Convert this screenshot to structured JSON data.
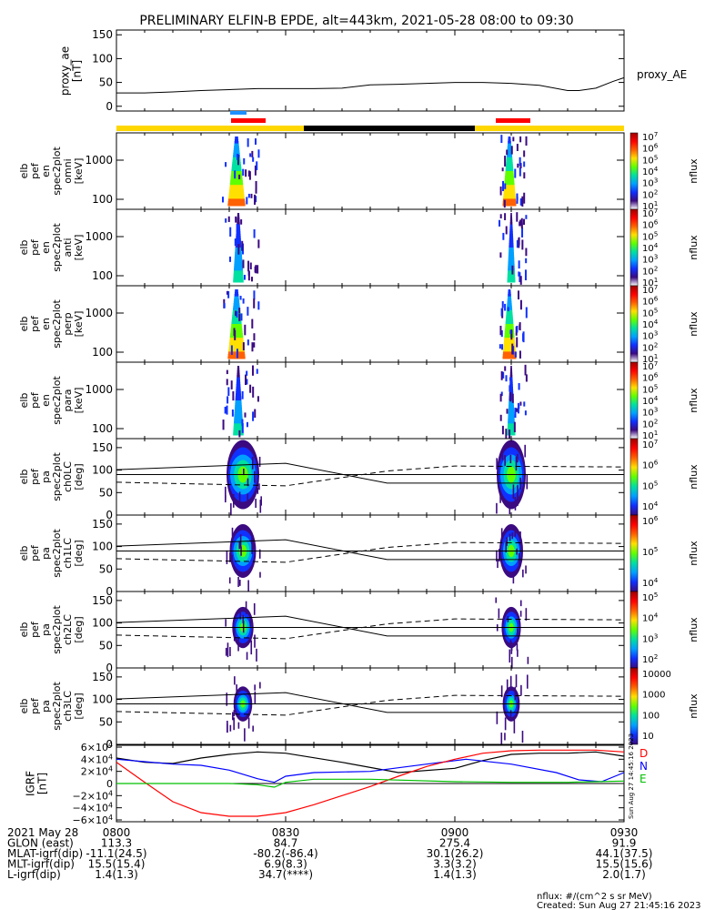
{
  "title": "PRELIMINARY ELFIN-B EPDE, alt=443km, 2021-05-28 08:00 to 09:30",
  "time_axis": {
    "ticks": [
      "0800",
      "0830",
      "0900",
      "0930"
    ],
    "tick_minutes": [
      0,
      30,
      60,
      90
    ],
    "range_minutes": [
      0,
      90
    ]
  },
  "proxy_ae": {
    "ylabel": [
      "proxy_ae",
      "[nT]"
    ],
    "legend": "proxy_AE",
    "yticks": [
      "150",
      "100",
      "50",
      "0"
    ],
    "ytick_values": [
      150,
      100,
      50,
      0
    ],
    "ylim": [
      -10,
      160
    ],
    "minutes": [
      0,
      5,
      10,
      15,
      20,
      25,
      30,
      35,
      40,
      45,
      50,
      55,
      60,
      65,
      70,
      75,
      80,
      82,
      85,
      88,
      90
    ],
    "values": [
      28,
      28,
      30,
      33,
      35,
      37,
      37,
      37,
      38,
      45,
      46,
      48,
      50,
      50,
      48,
      44,
      33,
      33,
      38,
      52,
      60
    ]
  },
  "spectrograms": [
    {
      "name": "omni",
      "ylabel": [
        "elb",
        "pef",
        "en",
        "spec2plot",
        "omni",
        "[keV]"
      ],
      "yticks": [
        "1000",
        "100"
      ],
      "zticks": [
        "10^7",
        "10^6",
        "10^5",
        "10^4",
        "10^3",
        "10^2",
        "10^1"
      ],
      "zlabel": "nflux",
      "intensity": 1.0
    },
    {
      "name": "anti",
      "ylabel": [
        "elb",
        "pef",
        "en",
        "spec2plot",
        "anti",
        "[keV]"
      ],
      "yticks": [
        "1000",
        "100"
      ],
      "zticks": [
        "10^7",
        "10^6",
        "10^5",
        "10^4",
        "10^3",
        "10^2",
        "10^1"
      ],
      "zlabel": "nflux",
      "intensity": 0.45
    },
    {
      "name": "perp",
      "ylabel": [
        "elb",
        "pef",
        "en",
        "spec2plot",
        "perp",
        "[keV]"
      ],
      "yticks": [
        "1000",
        "100"
      ],
      "zticks": [
        "10^7",
        "10^6",
        "10^5",
        "10^4",
        "10^3",
        "10^2",
        "10^1"
      ],
      "zlabel": "nflux",
      "intensity": 1.0
    },
    {
      "name": "para",
      "ylabel": [
        "elb",
        "pef",
        "en",
        "spec2plot",
        "para",
        "[keV]"
      ],
      "yticks": [
        "1000",
        "100"
      ],
      "zticks": [
        "10^7",
        "10^6",
        "10^5",
        "10^4",
        "10^3",
        "10^2",
        "10^1"
      ],
      "zlabel": "nflux",
      "intensity": 0.45
    }
  ],
  "pitch_angle": [
    {
      "name": "ch0LC",
      "ylabel": [
        "elb",
        "pef",
        "pa",
        "spec2plot",
        "ch0LC",
        "[deg]"
      ],
      "yticks": [
        "150",
        "100",
        "50",
        "0"
      ],
      "zticks": [
        "10^7",
        "10^6",
        "10^5",
        "10^4"
      ],
      "zlabel": "nflux",
      "size": 1.0
    },
    {
      "name": "ch1LC",
      "ylabel": [
        "elb",
        "pef",
        "pa",
        "spec2plot",
        "ch1LC",
        "[deg]"
      ],
      "yticks": [
        "150",
        "100",
        "50",
        "0"
      ],
      "zticks": [
        "10^6",
        "10^5",
        "10^4"
      ],
      "zlabel": "nflux",
      "size": 0.75
    },
    {
      "name": "ch2LC",
      "ylabel": [
        "elb",
        "pef",
        "pa",
        "spec2plot",
        "ch2LC",
        "[deg]"
      ],
      "yticks": [
        "150",
        "100",
        "50",
        "0"
      ],
      "zticks": [
        "10^5",
        "10^4",
        "10^3",
        "10^2"
      ],
      "zlabel": "nflux",
      "size": 0.55
    },
    {
      "name": "ch3LC",
      "ylabel": [
        "elb",
        "pef",
        "pa",
        "spec2plot",
        "ch3LC",
        "[deg]"
      ],
      "yticks": [
        "150",
        "100",
        "50",
        "0"
      ],
      "zticks": [
        "10000",
        "1000",
        "100",
        "10"
      ],
      "zlabel": "nflux",
      "size": 0.45
    }
  ],
  "igrf": {
    "ylabel": [
      "IGRF",
      "[nT]"
    ],
    "yticks": [
      "6×10^4",
      "4×10^4",
      "2×10^4",
      "0",
      "−2×10^4",
      "−4×10^4",
      "−6×10^4"
    ],
    "ytick_values": [
      60000,
      40000,
      20000,
      0,
      -20000,
      -40000,
      -60000
    ],
    "ylim": [
      -63000,
      63000
    ],
    "legend": [
      {
        "label": "D",
        "color": "#ff0000"
      },
      {
        "label": "N",
        "color": "#0000ff"
      },
      {
        "label": "E",
        "color": "#00c000"
      }
    ],
    "series": [
      {
        "name": "black",
        "color": "#000000",
        "minutes": [
          0,
          5,
          10,
          15,
          20,
          25,
          30,
          40,
          50,
          60,
          65,
          70,
          75,
          80,
          85,
          90
        ],
        "values": [
          42000,
          35000,
          33000,
          42000,
          48000,
          52000,
          50000,
          35000,
          18000,
          25000,
          38000,
          48000,
          50000,
          50000,
          52000,
          45000
        ]
      },
      {
        "name": "blue",
        "color": "#0000ff",
        "minutes": [
          0,
          5,
          10,
          15,
          20,
          25,
          28,
          30,
          35,
          45,
          55,
          62,
          70,
          78,
          82,
          86,
          90
        ],
        "values": [
          40000,
          36000,
          32000,
          30000,
          22000,
          8000,
          2000,
          12000,
          18000,
          20000,
          32000,
          40000,
          32000,
          18000,
          6000,
          3000,
          18000
        ]
      },
      {
        "name": "red",
        "color": "#ff0000",
        "minutes": [
          0,
          5,
          10,
          15,
          20,
          25,
          30,
          35,
          40,
          45,
          50,
          55,
          60,
          65,
          70,
          75,
          80,
          85,
          90
        ],
        "values": [
          35000,
          2000,
          -30000,
          -48000,
          -54000,
          -54000,
          -48000,
          -35000,
          -20000,
          -5000,
          12000,
          28000,
          40000,
          50000,
          54000,
          55000,
          55000,
          55000,
          52000
        ]
      },
      {
        "name": "green",
        "color": "#00c000",
        "minutes": [
          0,
          5,
          10,
          15,
          20,
          25,
          28,
          30,
          35,
          45,
          60,
          70,
          80,
          85,
          90
        ],
        "values": [
          0,
          0,
          0,
          0,
          0,
          -2000,
          -6000,
          2000,
          7000,
          7000,
          3000,
          2000,
          2000,
          3000,
          4000
        ]
      }
    ],
    "side_text": "Sun Aug 27 14:45:16 2023"
  },
  "ephemeris": {
    "rows": [
      {
        "label": "2021 May 28",
        "values": [
          "0800",
          "0830",
          "0900",
          "0930"
        ]
      },
      {
        "label": "GLON (east)",
        "values": [
          "113.3",
          "84.7",
          "275.4",
          "91.9"
        ]
      },
      {
        "label": "MLAT-igrf(dip)",
        "values": [
          "-11.1(24.5)",
          "-80.2(-86.4)",
          "30.1(26.2)",
          "44.1(37.5)"
        ]
      },
      {
        "label": "MLT-igrf(dip)",
        "values": [
          "15.5(15.4)",
          "6.9(8.3)",
          "3.3(3.2)",
          "15.5(15.6)"
        ]
      },
      {
        "label": "L-igrf(dip)",
        "values": [
          "1.4(1.3)",
          "34.7(****)",
          "1.4(1.3)",
          "2.0(1.7)"
        ]
      }
    ]
  },
  "footer": {
    "units": "nflux: #/(cm^2 s sr MeV)",
    "created": "Created: Sun Aug 27 21:45:16 2023"
  },
  "colors": {
    "science_bar_yellow": "#ffd700",
    "science_bar_black": "#000000",
    "science_zone_red": "#ff0000",
    "attitude_blue": "#1e90ff"
  }
}
